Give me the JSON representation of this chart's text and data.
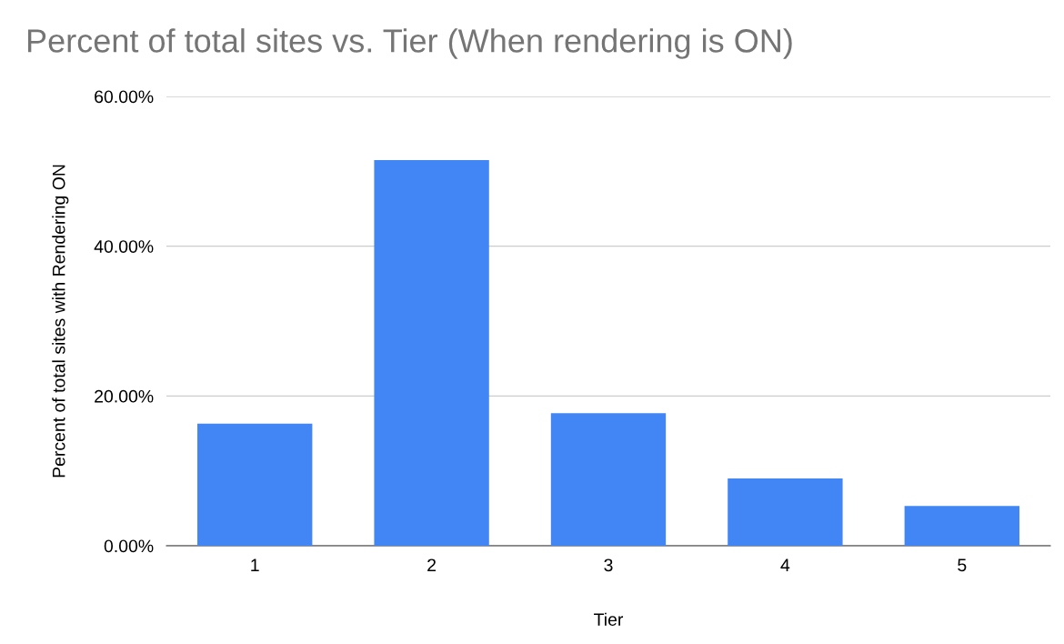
{
  "chart_data": {
    "type": "bar",
    "title": "Percent of total sites vs. Tier (When rendering is ON)",
    "xlabel": "Tier",
    "ylabel": "Percent of total sites with Rendering ON",
    "categories": [
      "1",
      "2",
      "3",
      "4",
      "5"
    ],
    "values": [
      16.3,
      51.5,
      17.7,
      9.0,
      5.3
    ],
    "color": "#4285f4",
    "ylim": [
      0,
      60
    ],
    "yticks": [
      {
        "value": 0,
        "label": "0.00%"
      },
      {
        "value": 20,
        "label": "20.00%"
      },
      {
        "value": 40,
        "label": "40.00%"
      },
      {
        "value": 60,
        "label": "60.00%"
      }
    ],
    "grid": "y"
  }
}
